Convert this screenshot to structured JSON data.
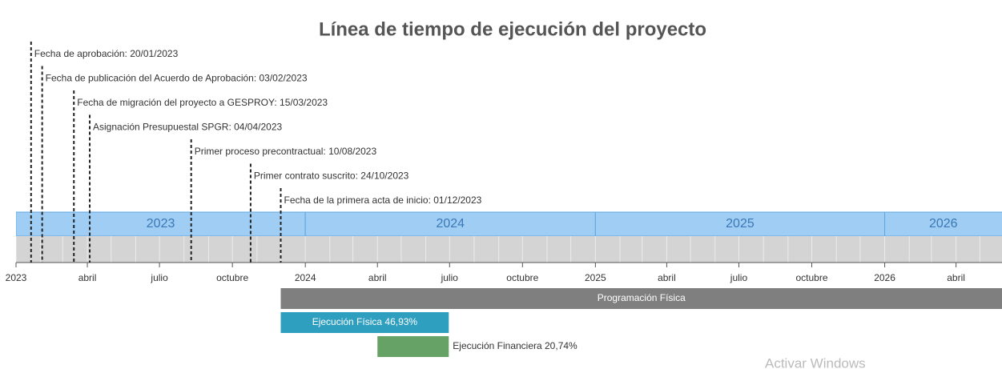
{
  "chart_data": {
    "type": "timeline",
    "title": "Línea de tiempo de ejecución del proyecto",
    "xlim": [
      "2023-01-01",
      "2026-05-29"
    ],
    "xticks": [
      {
        "value": "2023-01-01",
        "label": "2023"
      },
      {
        "value": "2023-04-01",
        "label": "abril"
      },
      {
        "value": "2023-07-01",
        "label": "julio"
      },
      {
        "value": "2023-10-01",
        "label": "octubre"
      },
      {
        "value": "2024-01-01",
        "label": "2024"
      },
      {
        "value": "2024-04-01",
        "label": "abril"
      },
      {
        "value": "2024-07-01",
        "label": "julio"
      },
      {
        "value": "2024-10-01",
        "label": "octubre"
      },
      {
        "value": "2025-01-01",
        "label": "2025"
      },
      {
        "value": "2025-04-01",
        "label": "abril"
      },
      {
        "value": "2025-07-01",
        "label": "julio"
      },
      {
        "value": "2025-10-01",
        "label": "octubre"
      },
      {
        "value": "2026-01-01",
        "label": "2026"
      },
      {
        "value": "2026-04-01",
        "label": "abril"
      }
    ],
    "years": [
      2023,
      2024,
      2025,
      2026
    ],
    "events": [
      {
        "label": "Fecha de aprobación: 20/01/2023",
        "date": "2023-01-20"
      },
      {
        "label": "Fecha de publicación del Acuerdo de Aprobación: 03/02/2023",
        "date": "2023-02-03"
      },
      {
        "label": "Fecha de migración del proyecto a GESPROY: 15/03/2023",
        "date": "2023-03-15"
      },
      {
        "label": "Asignación Presupuestal SPGR: 04/04/2023",
        "date": "2023-04-04"
      },
      {
        "label": "Primer proceso precontractual: 10/08/2023",
        "date": "2023-08-10"
      },
      {
        "label": "Primer contrato suscrito: 24/10/2023",
        "date": "2023-10-24"
      },
      {
        "label": "Fecha de la primera acta de inicio: 01/12/2023",
        "date": "2023-12-01"
      }
    ],
    "bars": [
      {
        "name": "Programación Física",
        "start": "2023-12-01",
        "end": "2026-12-31",
        "color": "#7f7f7f",
        "label_position": "inside"
      },
      {
        "name": "Ejecución Física 46,93%",
        "start": "2023-12-01",
        "end": "2024-06-30",
        "color": "#2f9fbf",
        "label_position": "inside"
      },
      {
        "name": "Ejecución Financiera 20,74%",
        "start": "2024-04-01",
        "end": "2024-06-30",
        "color": "#66a266",
        "label_position": "right"
      }
    ],
    "watermark": "Activar Windows"
  }
}
